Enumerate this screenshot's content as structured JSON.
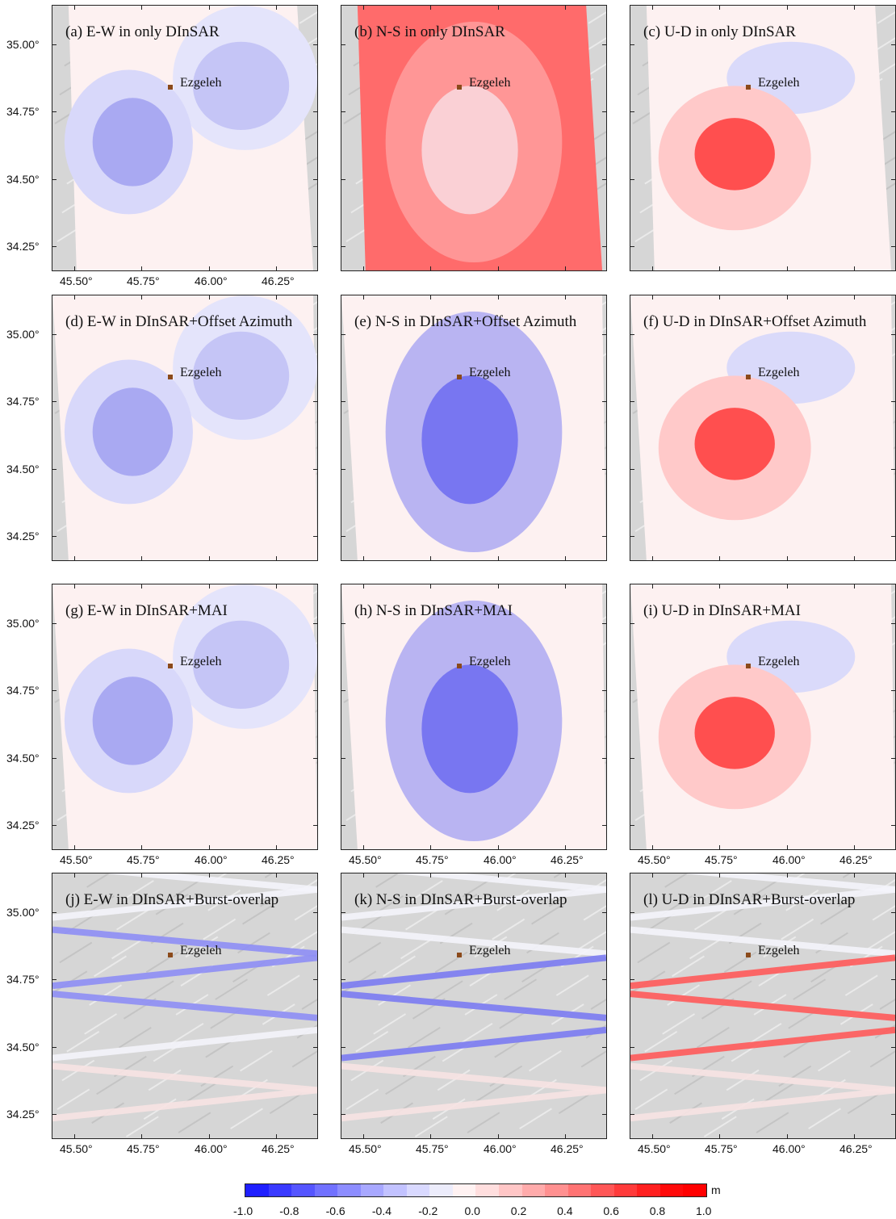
{
  "town": {
    "name": "Ezgeleh"
  },
  "axes": {
    "lat_labels": [
      "35.00°",
      "34.75°",
      "34.50°",
      "34.25°"
    ],
    "lon_labels": [
      "45.50°",
      "45.75°",
      "46.00°",
      "46.25°"
    ]
  },
  "panels": [
    {
      "id": "a",
      "title": "(a) E-W in only DInSAR",
      "component": "E-W",
      "method": "only DInSAR"
    },
    {
      "id": "b",
      "title": "(b) N-S in only DInSAR",
      "component": "N-S",
      "method": "only DInSAR"
    },
    {
      "id": "c",
      "title": "(c) U-D in only DInSAR",
      "component": "U-D",
      "method": "only DInSAR"
    },
    {
      "id": "d",
      "title": "(d) E-W in DInSAR+Offset Azimuth",
      "component": "E-W",
      "method": "DInSAR+Offset Azimuth"
    },
    {
      "id": "e",
      "title": "(e) N-S in DInSAR+Offset Azimuth",
      "component": "N-S",
      "method": "DInSAR+Offset Azimuth"
    },
    {
      "id": "f",
      "title": "(f) U-D in DInSAR+Offset Azimuth",
      "component": "U-D",
      "method": "DInSAR+Offset Azimuth"
    },
    {
      "id": "g",
      "title": "(g) E-W in DInSAR+MAI",
      "component": "E-W",
      "method": "DInSAR+MAI"
    },
    {
      "id": "h",
      "title": "(h) N-S in DInSAR+MAI",
      "component": "N-S",
      "method": "DInSAR+MAI"
    },
    {
      "id": "i",
      "title": "(i) U-D in DInSAR+MAI",
      "component": "U-D",
      "method": "DInSAR+MAI"
    },
    {
      "id": "j",
      "title": "(j) E-W in DInSAR+Burst-overlap",
      "component": "E-W",
      "method": "DInSAR+Burst-overlap"
    },
    {
      "id": "k",
      "title": "(k) N-S in DInSAR+Burst-overlap",
      "component": "N-S",
      "method": "DInSAR+Burst-overlap"
    },
    {
      "id": "l",
      "title": "(l) U-D in DInSAR+Burst-overlap",
      "component": "U-D",
      "method": "DInSAR+Burst-overlap"
    }
  ],
  "colorbar": {
    "unit": "m",
    "tick_labels": [
      "-1.0",
      "-0.8",
      "-0.6",
      "-0.4",
      "-0.2",
      "0.0",
      "0.2",
      "0.4",
      "0.6",
      "0.8",
      "1.0"
    ],
    "range": [
      -1.0,
      1.0
    ],
    "colors": [
      "#1f1fff",
      "#3a3aff",
      "#5555ff",
      "#7171ff",
      "#8d8dff",
      "#a8a8ff",
      "#c2c2ff",
      "#d9d9ff",
      "#ececfb",
      "#fff2f2",
      "#ffdede",
      "#ffc6c6",
      "#ffabab",
      "#ff9090",
      "#ff7373",
      "#ff5757",
      "#ff3b3b",
      "#ff2020",
      "#ff0a0a",
      "#ff0000"
    ],
    "negative_color": "#2b2bff",
    "positive_color": "#ff1a1a"
  }
}
